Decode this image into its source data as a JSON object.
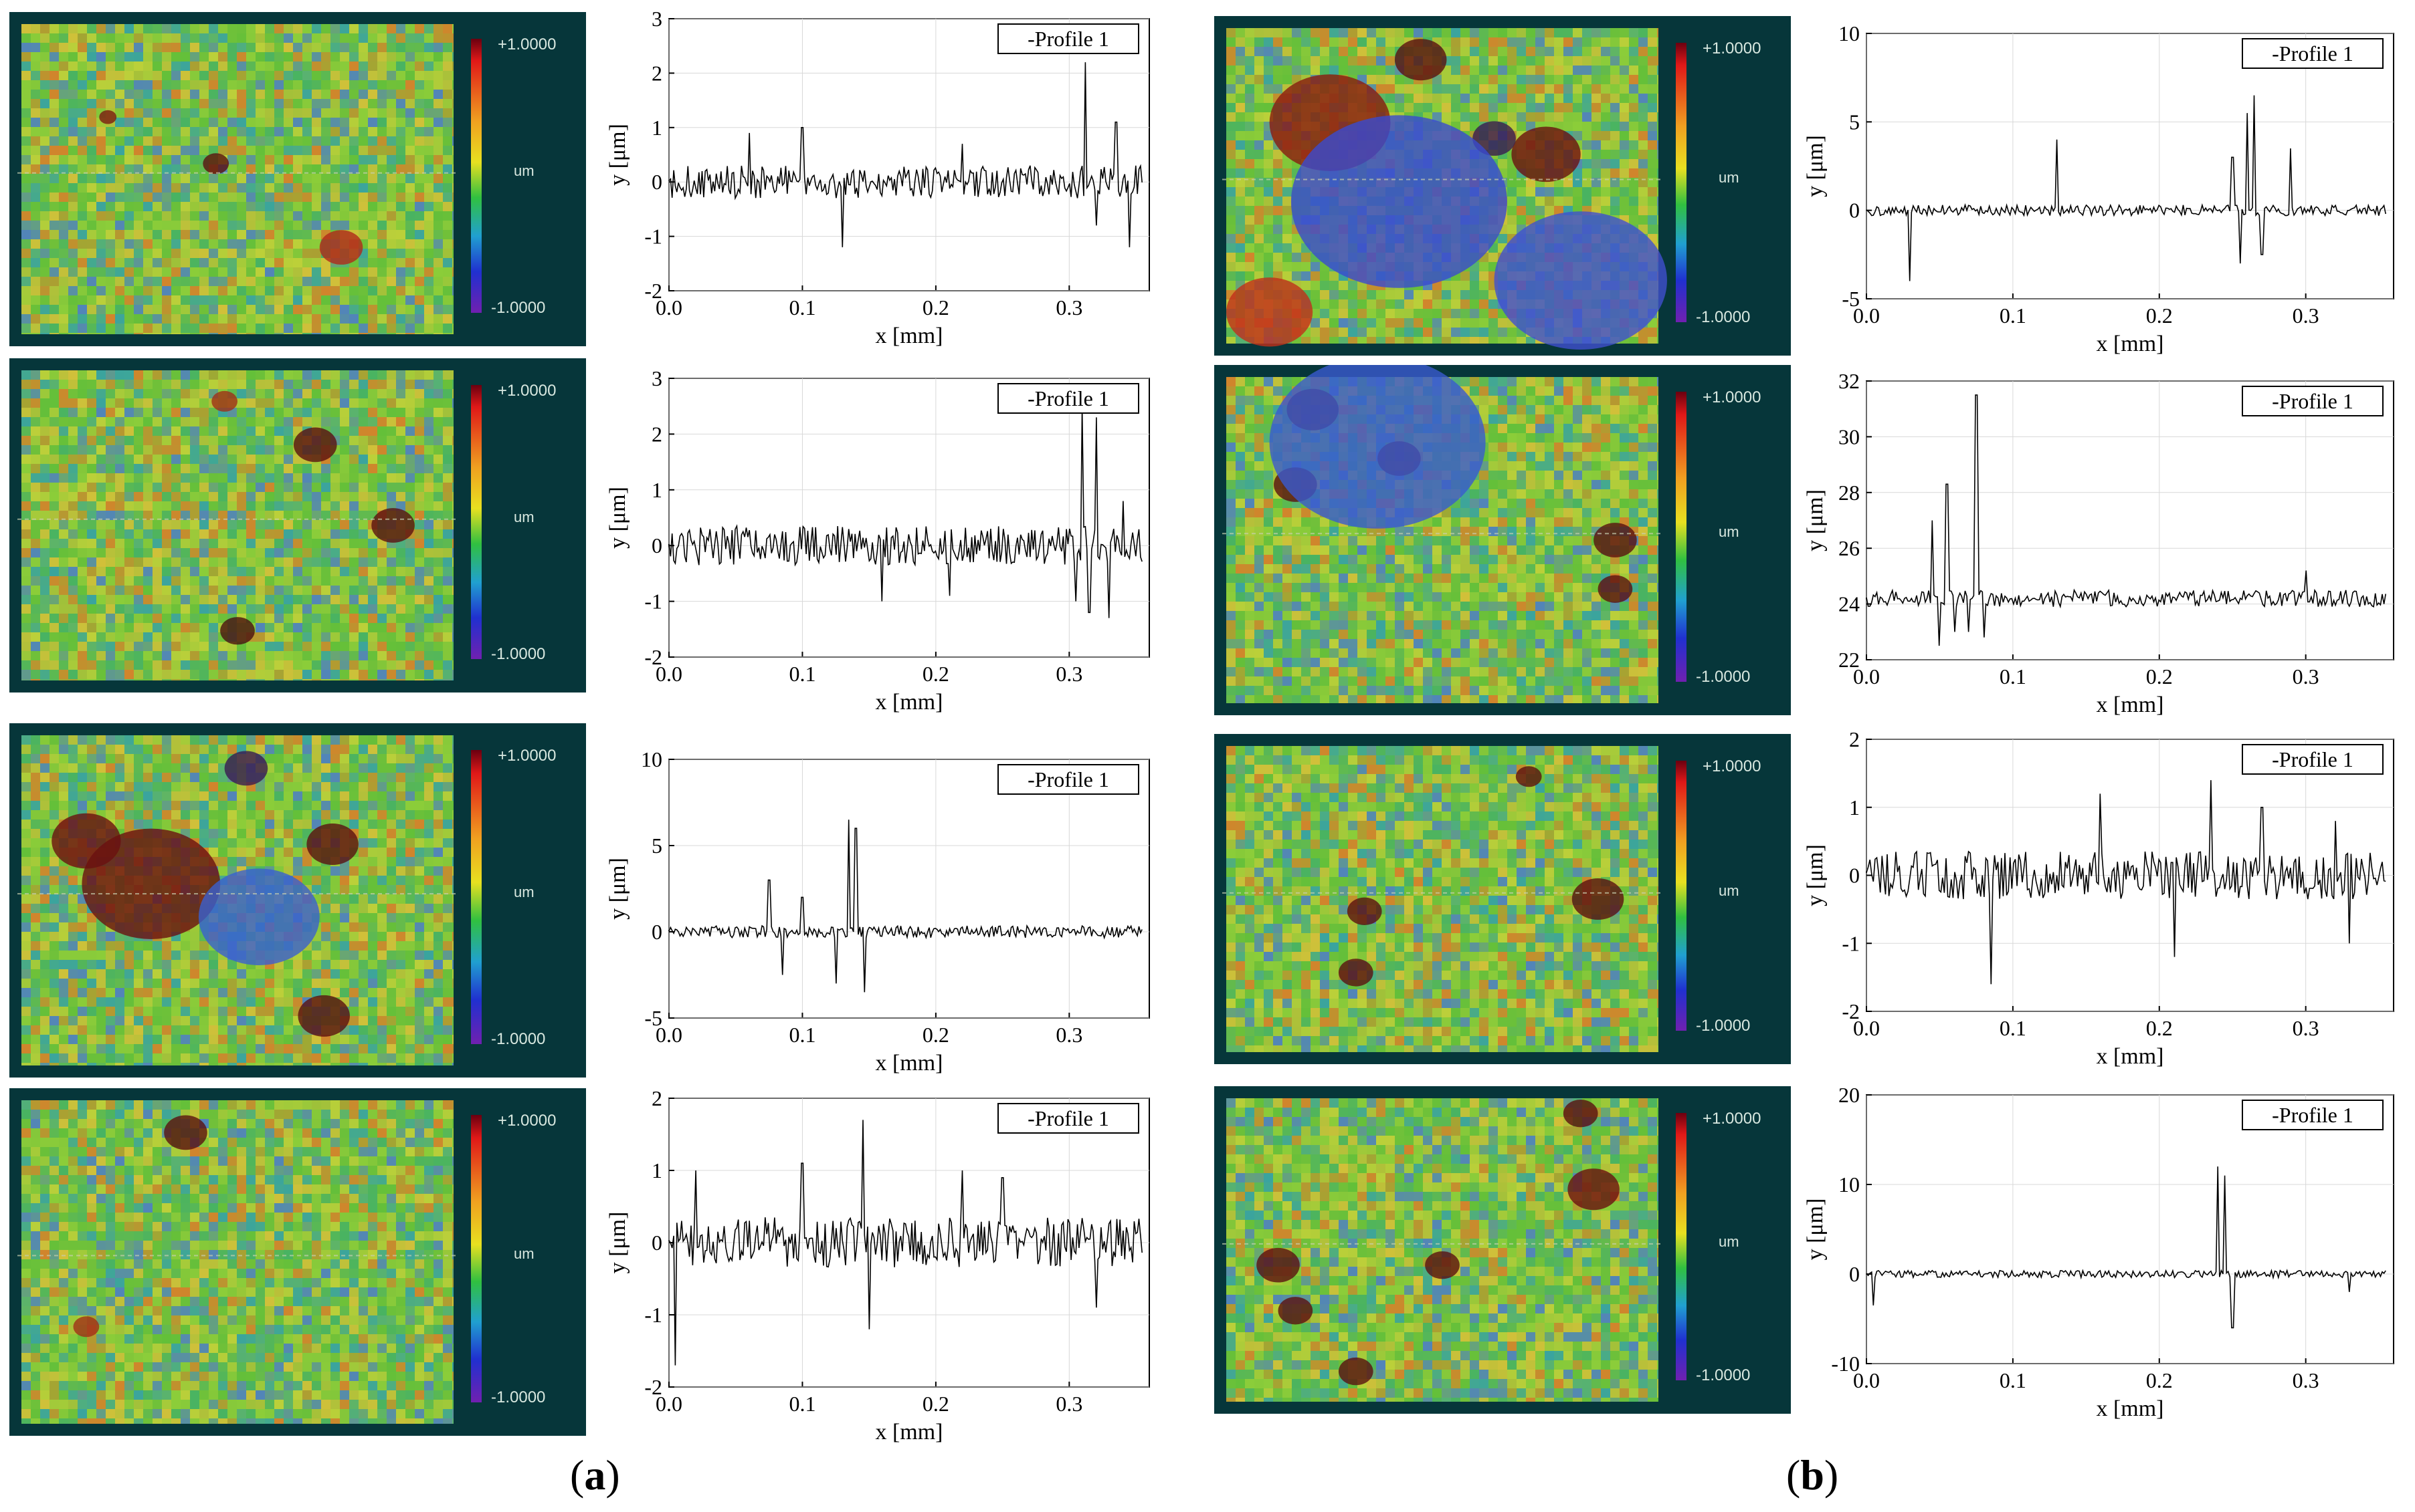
{
  "colorbar": {
    "max_label": "+1.0000",
    "min_label": "-1.0000",
    "unit": "um"
  },
  "legend_label": "-Profile 1",
  "x_axis_label": "x [mm]",
  "y_axis_label": "y [μm]",
  "captions": {
    "a": "a",
    "b": "b"
  },
  "chart_data": [
    {
      "id": "a1",
      "type": "line",
      "legend": "-Profile 1",
      "xlabel": "x [mm]",
      "ylabel": "y [μm]",
      "xlim": [
        0,
        0.36
      ],
      "ylim": [
        -2,
        3
      ],
      "xticks": [
        0.0,
        0.1,
        0.2,
        0.3
      ],
      "yticks": [
        -2,
        -1,
        0,
        1,
        2,
        3
      ],
      "baseline": 0,
      "noise": 0.3,
      "spikes": [
        [
          0.06,
          0.9
        ],
        [
          0.1,
          1.0
        ],
        [
          0.13,
          -1.2
        ],
        [
          0.22,
          0.7
        ],
        [
          0.312,
          2.2
        ],
        [
          0.32,
          -0.8
        ],
        [
          0.335,
          1.1
        ],
        [
          0.345,
          -1.2
        ]
      ]
    },
    {
      "id": "a2",
      "type": "line",
      "legend": "-Profile 1",
      "xlabel": "x [mm]",
      "ylabel": "y [μm]",
      "xlim": [
        0,
        0.36
      ],
      "ylim": [
        -2,
        3
      ],
      "xticks": [
        0.0,
        0.1,
        0.2,
        0.3
      ],
      "yticks": [
        -2,
        -1,
        0,
        1,
        2,
        3
      ],
      "baseline": 0,
      "noise": 0.35,
      "spikes": [
        [
          0.16,
          -1.0
        ],
        [
          0.21,
          -0.9
        ],
        [
          0.305,
          -1.0
        ],
        [
          0.31,
          2.5
        ],
        [
          0.315,
          -1.2
        ],
        [
          0.32,
          2.3
        ],
        [
          0.33,
          -1.3
        ],
        [
          0.34,
          0.8
        ]
      ]
    },
    {
      "id": "a3",
      "type": "line",
      "legend": "-Profile 1",
      "xlabel": "x [mm]",
      "ylabel": "y [μm]",
      "xlim": [
        0,
        0.36
      ],
      "ylim": [
        -5,
        10
      ],
      "xticks": [
        0.0,
        0.1,
        0.2,
        0.3
      ],
      "yticks": [
        -5,
        0,
        5,
        10
      ],
      "baseline": 0,
      "noise": 0.35,
      "spikes": [
        [
          0.075,
          3.0
        ],
        [
          0.085,
          -2.5
        ],
        [
          0.1,
          2.0
        ],
        [
          0.125,
          -3.0
        ],
        [
          0.135,
          6.5
        ],
        [
          0.14,
          6.0
        ],
        [
          0.147,
          -3.5
        ]
      ]
    },
    {
      "id": "a4",
      "type": "line",
      "legend": "-Profile 1",
      "xlabel": "x [mm]",
      "ylabel": "y [μm]",
      "xlim": [
        0,
        0.36
      ],
      "ylim": [
        -2,
        2
      ],
      "xticks": [
        0.0,
        0.1,
        0.2,
        0.3
      ],
      "yticks": [
        -2,
        -1,
        0,
        1,
        2
      ],
      "baseline": 0,
      "noise": 0.35,
      "spikes": [
        [
          0.005,
          -1.7
        ],
        [
          0.02,
          1.0
        ],
        [
          0.1,
          1.1
        ],
        [
          0.145,
          1.7
        ],
        [
          0.15,
          -1.2
        ],
        [
          0.22,
          1.0
        ],
        [
          0.25,
          0.9
        ],
        [
          0.32,
          -0.9
        ]
      ]
    },
    {
      "id": "b1",
      "type": "line",
      "legend": "-Profile 1",
      "xlabel": "x [mm]",
      "ylabel": "y [μm]",
      "xlim": [
        0,
        0.36
      ],
      "ylim": [
        -5,
        10
      ],
      "xticks": [
        0.0,
        0.1,
        0.2,
        0.3
      ],
      "yticks": [
        -5,
        0,
        5,
        10
      ],
      "baseline": 0,
      "noise": 0.3,
      "spikes": [
        [
          0.03,
          -4.0
        ],
        [
          0.13,
          4.0
        ],
        [
          0.25,
          3.0
        ],
        [
          0.255,
          -3.0
        ],
        [
          0.26,
          5.5
        ],
        [
          0.265,
          6.5
        ],
        [
          0.27,
          -2.5
        ],
        [
          0.29,
          3.5
        ]
      ]
    },
    {
      "id": "b2",
      "type": "line",
      "legend": "-Profile 1",
      "xlabel": "x [mm]",
      "ylabel": "y [μm]",
      "xlim": [
        0,
        0.36
      ],
      "ylim": [
        22,
        32
      ],
      "xticks": [
        0.0,
        0.1,
        0.2,
        0.3
      ],
      "yticks": [
        22,
        24,
        26,
        28,
        30,
        32
      ],
      "baseline": 24.2,
      "noise": 0.3,
      "spikes": [
        [
          0.045,
          27.0
        ],
        [
          0.05,
          22.5
        ],
        [
          0.055,
          28.3
        ],
        [
          0.06,
          23.0
        ],
        [
          0.07,
          23.0
        ],
        [
          0.075,
          31.5
        ],
        [
          0.08,
          22.8
        ],
        [
          0.3,
          25.2
        ]
      ]
    },
    {
      "id": "b3",
      "type": "line",
      "legend": "-Profile 1",
      "xlabel": "x [mm]",
      "ylabel": "y [μm]",
      "xlim": [
        0,
        0.36
      ],
      "ylim": [
        -2,
        2
      ],
      "xticks": [
        0.0,
        0.1,
        0.2,
        0.3
      ],
      "yticks": [
        -2,
        -1,
        0,
        1,
        2
      ],
      "baseline": 0,
      "noise": 0.35,
      "spikes": [
        [
          0.085,
          -1.6
        ],
        [
          0.16,
          1.2
        ],
        [
          0.235,
          1.4
        ],
        [
          0.21,
          -1.2
        ],
        [
          0.27,
          1.0
        ],
        [
          0.32,
          0.8
        ],
        [
          0.33,
          -1.0
        ]
      ]
    },
    {
      "id": "b4",
      "type": "line",
      "legend": "-Profile 1",
      "xlabel": "x [mm]",
      "ylabel": "y [μm]",
      "xlim": [
        0,
        0.36
      ],
      "ylim": [
        -10,
        20
      ],
      "xticks": [
        0.0,
        0.1,
        0.2,
        0.3
      ],
      "yticks": [
        -10,
        0,
        10,
        20
      ],
      "baseline": 0,
      "noise": 0.4,
      "spikes": [
        [
          0.005,
          -3.5
        ],
        [
          0.24,
          12.0
        ],
        [
          0.245,
          11.0
        ],
        [
          0.25,
          -6.0
        ],
        [
          0.33,
          -2.0
        ]
      ]
    }
  ]
}
